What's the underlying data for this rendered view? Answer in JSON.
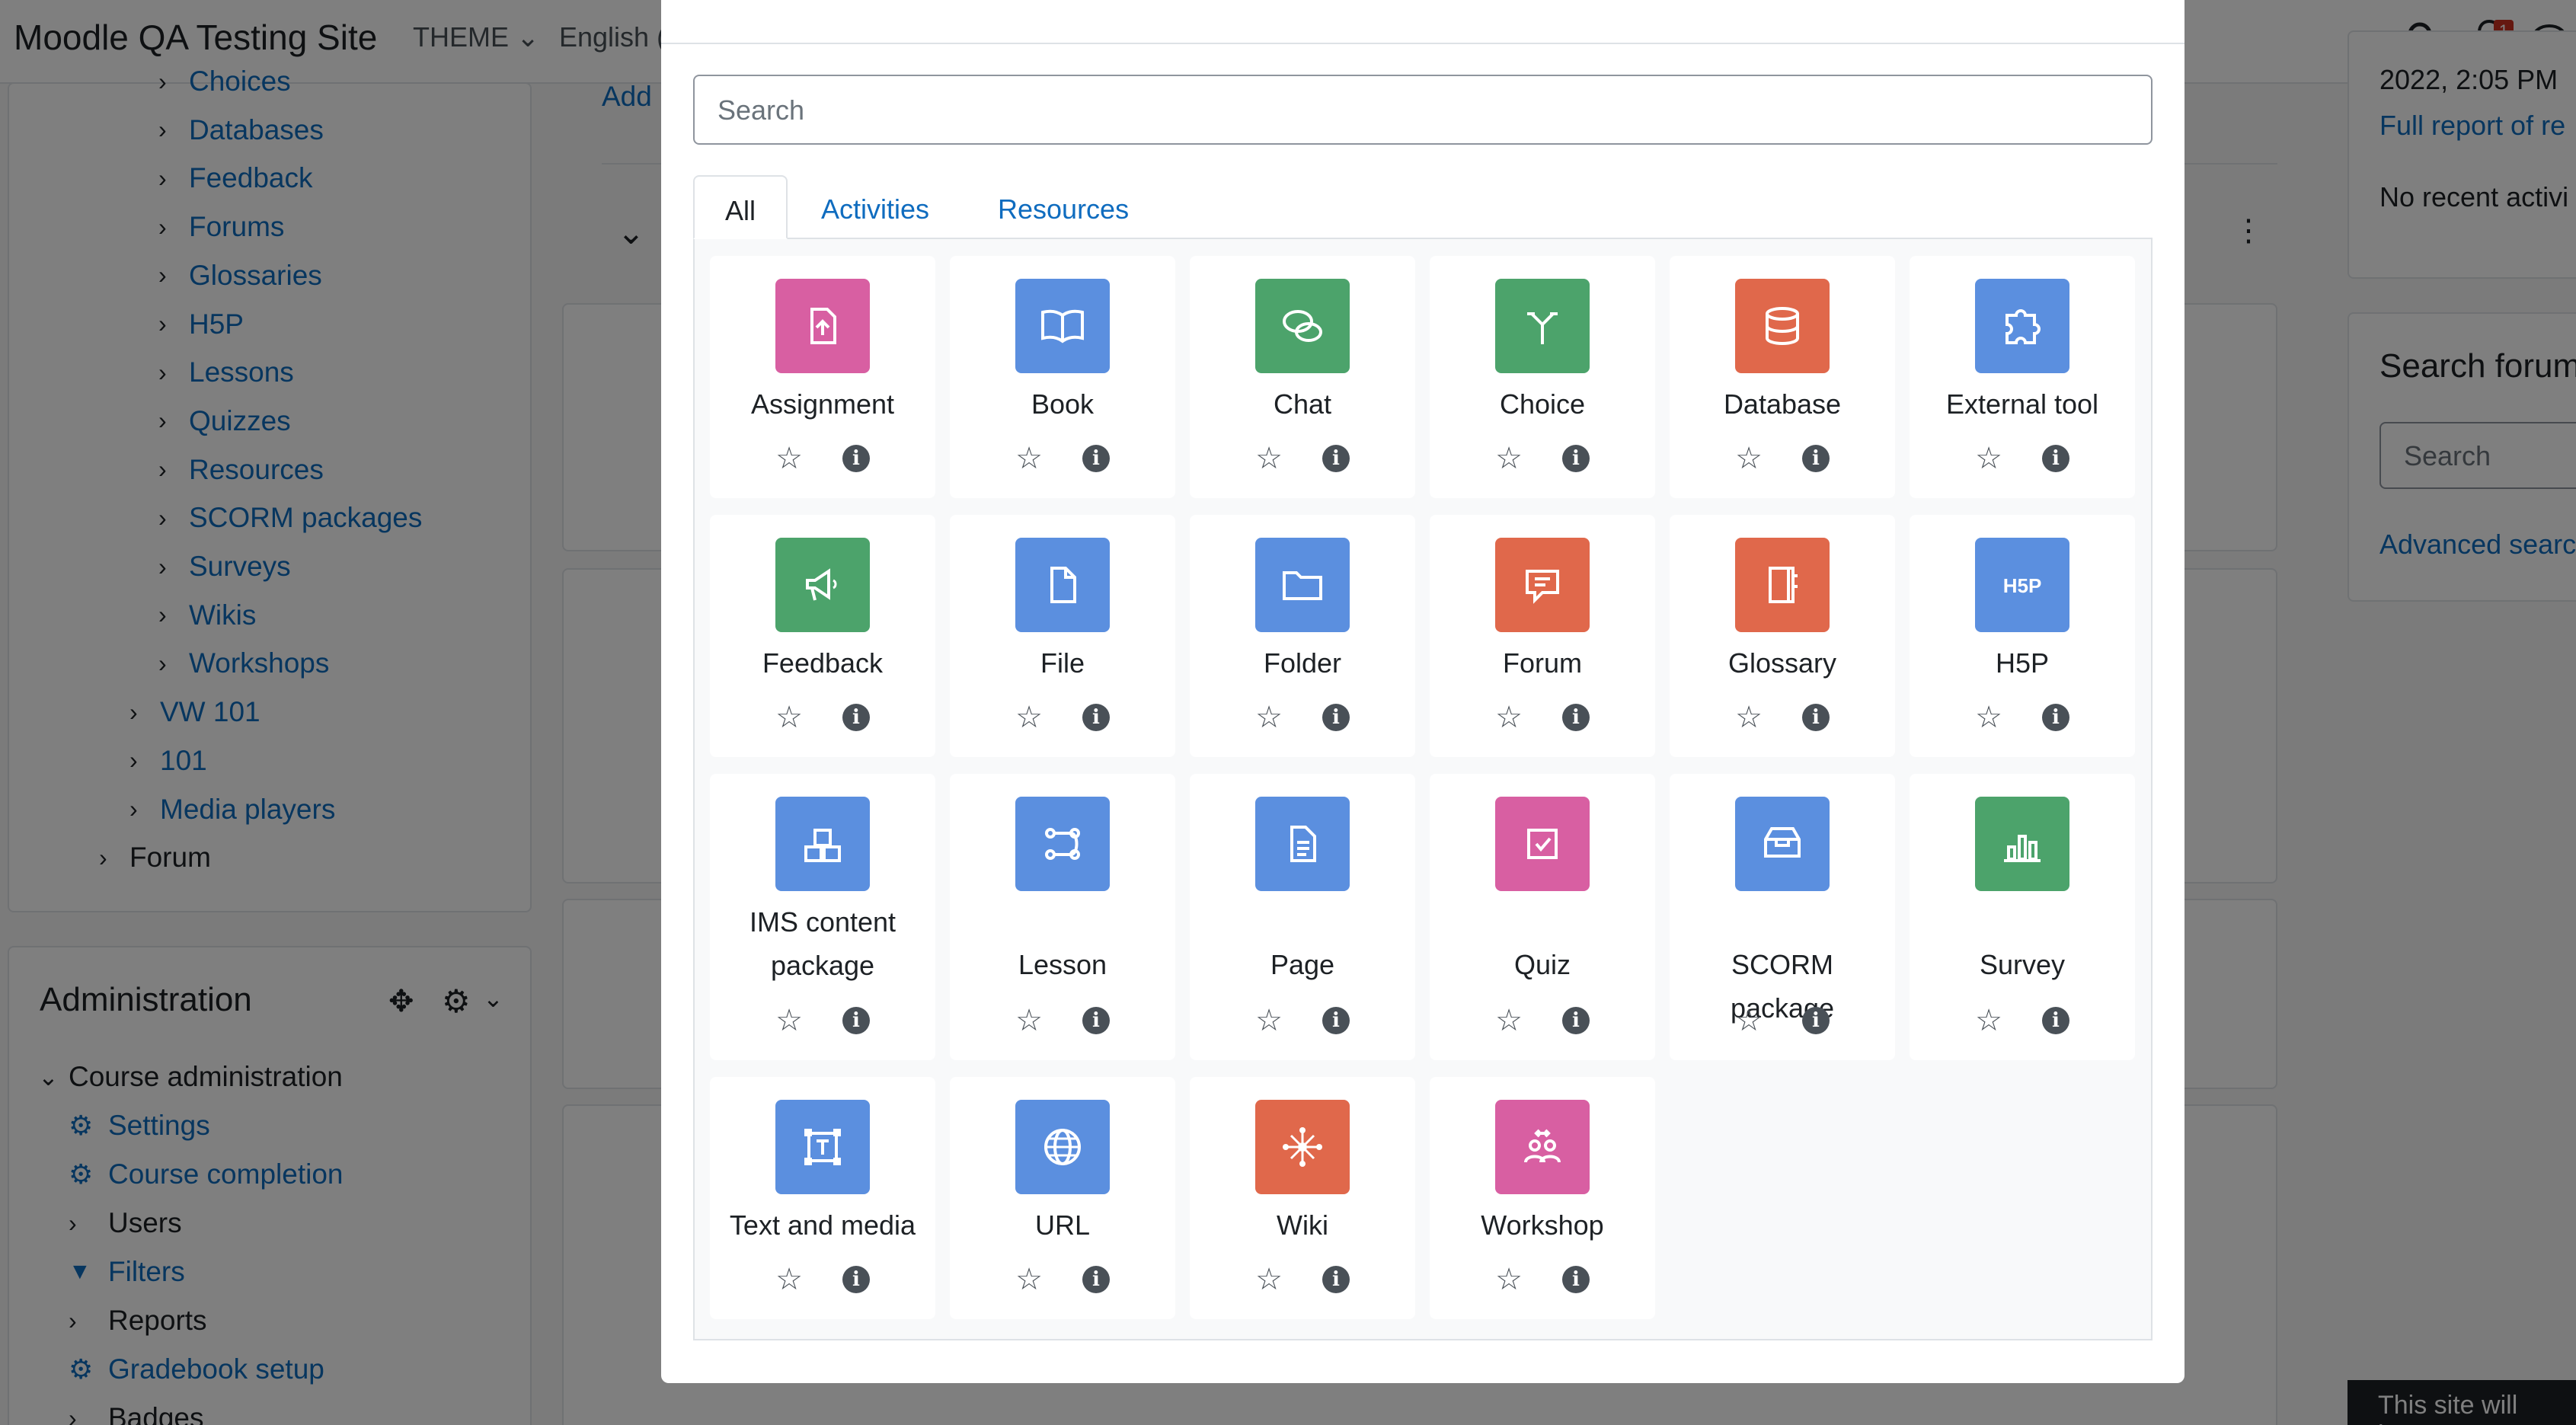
{
  "navbar": {
    "brand": "Moodle QA Testing Site",
    "theme_label": "THEME",
    "language_label": "English (",
    "notification_count": "1"
  },
  "sidebar": {
    "tree_items": [
      {
        "label": "Choices",
        "level": 3
      },
      {
        "label": "Databases",
        "level": 3
      },
      {
        "label": "Feedback",
        "level": 3
      },
      {
        "label": "Forums",
        "level": 3
      },
      {
        "label": "Glossaries",
        "level": 3
      },
      {
        "label": "H5P",
        "level": 3
      },
      {
        "label": "Lessons",
        "level": 3
      },
      {
        "label": "Quizzes",
        "level": 3
      },
      {
        "label": "Resources",
        "level": 3
      },
      {
        "label": "SCORM packages",
        "level": 3
      },
      {
        "label": "Surveys",
        "level": 3
      },
      {
        "label": "Wikis",
        "level": 3
      },
      {
        "label": "Workshops",
        "level": 3
      },
      {
        "label": "VW 101",
        "level": 2
      },
      {
        "label": "101",
        "level": 2
      },
      {
        "label": "Media players",
        "level": 2
      },
      {
        "label": "Forum",
        "level": 1
      }
    ],
    "admin_title": "Administration",
    "course_admin_label": "Course administration",
    "admin_items": [
      {
        "label": "Settings",
        "icon": "gear-icon"
      },
      {
        "label": "Course completion",
        "icon": "gear-icon"
      },
      {
        "label": "Users",
        "icon": "chevron-right-icon"
      },
      {
        "label": "Filters",
        "icon": "filter-icon"
      },
      {
        "label": "Reports",
        "icon": "chevron-right-icon"
      },
      {
        "label": "Gradebook setup",
        "icon": "gear-icon"
      },
      {
        "label": "Badges",
        "icon": "chevron-right-icon"
      }
    ]
  },
  "main": {
    "add_link": "Add"
  },
  "right": {
    "date_fragment": "2022, 2:05 PM",
    "full_report": "Full report of re",
    "no_recent": "No recent activi",
    "search_forums_title": "Search forum",
    "search_placeholder": "Search",
    "advanced_search": "Advanced searc"
  },
  "modal": {
    "search_placeholder": "Search",
    "tabs": [
      "All",
      "Activities",
      "Resources"
    ],
    "active_tab": "All",
    "modules": [
      {
        "name": "Assignment",
        "color": "#d85fa2",
        "icon": "assignment-icon"
      },
      {
        "name": "Book",
        "color": "#5b8fdf",
        "icon": "book-icon"
      },
      {
        "name": "Chat",
        "color": "#4ca36b",
        "icon": "chat-icon"
      },
      {
        "name": "Choice",
        "color": "#4ca36b",
        "icon": "choice-icon"
      },
      {
        "name": "Database",
        "color": "#e0684b",
        "icon": "database-icon"
      },
      {
        "name": "External tool",
        "color": "#5b8fdf",
        "icon": "puzzle-icon"
      },
      {
        "name": "Feedback",
        "color": "#4ca36b",
        "icon": "megaphone-icon"
      },
      {
        "name": "File",
        "color": "#5b8fdf",
        "icon": "file-icon"
      },
      {
        "name": "Folder",
        "color": "#5b8fdf",
        "icon": "folder-icon"
      },
      {
        "name": "Forum",
        "color": "#e0684b",
        "icon": "forum-icon"
      },
      {
        "name": "Glossary",
        "color": "#e0684b",
        "icon": "glossary-icon"
      },
      {
        "name": "H5P",
        "color": "#5b8fdf",
        "icon": "h5p-icon"
      },
      {
        "name": "IMS content package",
        "color": "#5b8fdf",
        "icon": "ims-package-icon"
      },
      {
        "name": "Lesson",
        "color": "#5b8fdf",
        "icon": "lesson-icon"
      },
      {
        "name": "Page",
        "color": "#5b8fdf",
        "icon": "page-icon"
      },
      {
        "name": "Quiz",
        "color": "#d85fa2",
        "icon": "quiz-icon"
      },
      {
        "name": "SCORM package",
        "color": "#5b8fdf",
        "icon": "scorm-icon"
      },
      {
        "name": "Survey",
        "color": "#4ca36b",
        "icon": "survey-icon"
      },
      {
        "name": "Text and media",
        "color": "#5b8fdf",
        "icon": "text-media-icon"
      },
      {
        "name": "URL",
        "color": "#5b8fdf",
        "icon": "globe-icon"
      },
      {
        "name": "Wiki",
        "color": "#e0684b",
        "icon": "wiki-icon"
      },
      {
        "name": "Workshop",
        "color": "#d85fa2",
        "icon": "workshop-icon"
      }
    ]
  },
  "footer": {
    "notice": "This site will be"
  }
}
